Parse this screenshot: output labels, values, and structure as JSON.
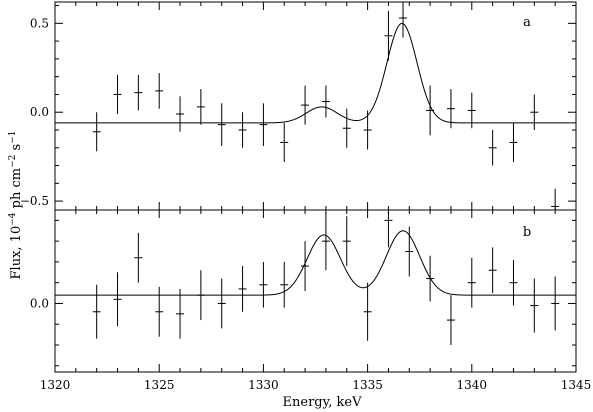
{
  "chart_data": {
    "type": "scatter",
    "xlabel": "Energy, keV",
    "ylabel_parts": {
      "a": "Flux, 10",
      "exp1": "−4",
      "b": " ph cm",
      "exp2": "−2",
      "c": " s",
      "exp3": "−1"
    },
    "xlim": [
      1320,
      1345
    ],
    "x_ticks": [
      "1320",
      "1325",
      "1330",
      "1335",
      "1340",
      "1345"
    ],
    "grid": false,
    "panels": [
      {
        "label": "a",
        "ylim": [
          -0.55,
          0.62
        ],
        "y_ticks": [
          {
            "v": 0.5,
            "t": "0.5"
          },
          {
            "v": 0.0,
            "t": "0.0"
          },
          {
            "v": -0.5,
            "t": "−0.5"
          }
        ],
        "points": [
          {
            "x": 1322,
            "y": -0.11,
            "err": 0.11
          },
          {
            "x": 1323,
            "y": 0.1,
            "err": 0.11
          },
          {
            "x": 1324,
            "y": 0.11,
            "err": 0.1
          },
          {
            "x": 1325,
            "y": 0.12,
            "err": 0.1
          },
          {
            "x": 1326,
            "y": -0.01,
            "err": 0.1
          },
          {
            "x": 1327,
            "y": 0.03,
            "err": 0.1
          },
          {
            "x": 1328,
            "y": -0.07,
            "err": 0.12
          },
          {
            "x": 1329,
            "y": -0.1,
            "err": 0.1
          },
          {
            "x": 1330,
            "y": -0.07,
            "err": 0.12
          },
          {
            "x": 1331,
            "y": -0.17,
            "err": 0.11
          },
          {
            "x": 1332,
            "y": 0.04,
            "err": 0.11
          },
          {
            "x": 1333,
            "y": 0.06,
            "err": 0.09
          },
          {
            "x": 1334,
            "y": -0.09,
            "err": 0.11
          },
          {
            "x": 1335,
            "y": -0.1,
            "err": 0.11
          },
          {
            "x": 1336,
            "y": 0.43,
            "err": 0.14
          },
          {
            "x": 1336.7,
            "y": 0.53,
            "err": 0.11
          },
          {
            "x": 1338,
            "y": 0.01,
            "err": 0.14
          },
          {
            "x": 1339,
            "y": 0.02,
            "err": 0.11
          },
          {
            "x": 1340,
            "y": 0.01,
            "err": 0.1
          },
          {
            "x": 1341,
            "y": -0.2,
            "err": 0.1
          },
          {
            "x": 1342,
            "y": -0.17,
            "err": 0.11
          },
          {
            "x": 1343,
            "y": 0.0,
            "err": 0.1
          },
          {
            "x": 1344,
            "y": -0.53,
            "err": 0.1
          }
        ],
        "model": {
          "baseline": -0.06,
          "lines": [
            {
              "center": 1332.8,
              "amplitude": 0.09,
              "sigma": 0.75
            },
            {
              "center": 1336.65,
              "amplitude": 0.56,
              "sigma": 0.72
            }
          ]
        }
      },
      {
        "label": "b",
        "ylim": [
          -0.33,
          0.45
        ],
        "y_ticks": [
          {
            "v": 0.0,
            "t": "0.0"
          }
        ],
        "points": [
          {
            "x": 1322,
            "y": -0.04,
            "err": 0.13
          },
          {
            "x": 1323,
            "y": 0.02,
            "err": 0.13
          },
          {
            "x": 1324,
            "y": 0.22,
            "err": 0.12
          },
          {
            "x": 1325,
            "y": -0.04,
            "err": 0.12
          },
          {
            "x": 1326,
            "y": -0.05,
            "err": 0.12
          },
          {
            "x": 1327,
            "y": 0.04,
            "err": 0.12
          },
          {
            "x": 1328,
            "y": 0.0,
            "err": 0.12
          },
          {
            "x": 1329,
            "y": 0.07,
            "err": 0.11
          },
          {
            "x": 1330,
            "y": 0.09,
            "err": 0.11
          },
          {
            "x": 1331,
            "y": 0.09,
            "err": 0.11
          },
          {
            "x": 1332,
            "y": 0.18,
            "err": 0.12
          },
          {
            "x": 1333,
            "y": 0.3,
            "err": 0.14
          },
          {
            "x": 1334,
            "y": 0.3,
            "err": 0.12
          },
          {
            "x": 1335,
            "y": -0.04,
            "err": 0.14
          },
          {
            "x": 1336,
            "y": 0.4,
            "err": 0.13
          },
          {
            "x": 1337,
            "y": 0.25,
            "err": 0.12
          },
          {
            "x": 1338,
            "y": 0.12,
            "err": 0.11
          },
          {
            "x": 1339,
            "y": -0.08,
            "err": 0.12
          },
          {
            "x": 1340,
            "y": 0.1,
            "err": 0.12
          },
          {
            "x": 1341,
            "y": 0.16,
            "err": 0.11
          },
          {
            "x": 1342,
            "y": 0.1,
            "err": 0.11
          },
          {
            "x": 1343,
            "y": -0.01,
            "err": 0.13
          },
          {
            "x": 1344,
            "y": 0.0,
            "err": 0.13
          }
        ],
        "model": {
          "baseline": 0.04,
          "lines": [
            {
              "center": 1332.9,
              "amplitude": 0.29,
              "sigma": 0.8
            },
            {
              "center": 1336.7,
              "amplitude": 0.31,
              "sigma": 0.8
            }
          ]
        }
      }
    ]
  }
}
